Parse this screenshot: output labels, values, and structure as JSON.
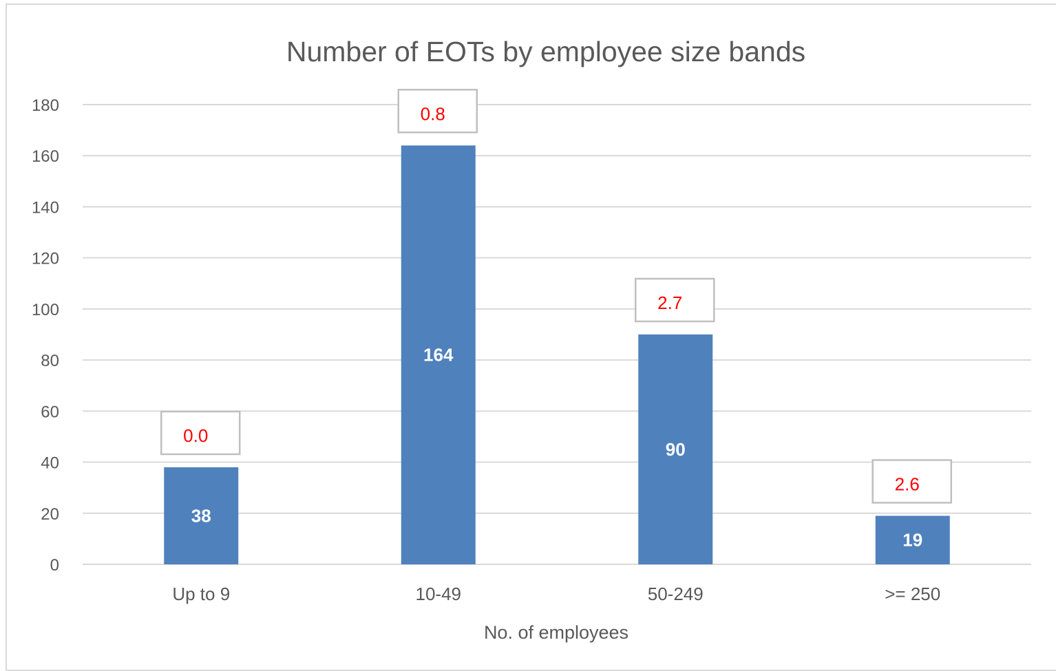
{
  "chart_data": {
    "type": "bar",
    "title": "Number of EOTs by employee size bands",
    "xlabel": "No. of employees",
    "ylabel": "",
    "categories": [
      "Up to 9",
      "10-49",
      "50-249",
      ">= 250"
    ],
    "values": [
      38,
      164,
      90,
      19
    ],
    "data_labels": [
      "38",
      "164",
      "90",
      "19"
    ],
    "annotations": [
      "0.0",
      "0.8",
      "2.7",
      "2.6"
    ],
    "ylim": [
      0,
      180
    ],
    "yticks": [
      "0",
      "20",
      "40",
      "60",
      "80",
      "100",
      "120",
      "140",
      "160",
      "180"
    ],
    "grid": true,
    "legend": "none",
    "colors": {
      "bar": "#4f81bd",
      "annotation_text": "#ff0000",
      "annotation_border": "#bfbfbf",
      "grid": "#d9d9d9",
      "text": "#595959"
    }
  }
}
